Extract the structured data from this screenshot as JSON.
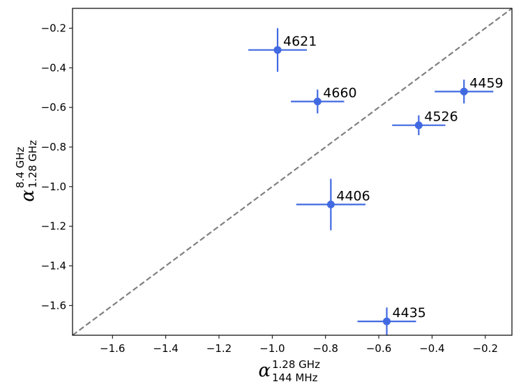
{
  "chart_data": {
    "type": "scatter",
    "title": "",
    "xlabel": {
      "symbol": "α",
      "sup": "1.28 GHz",
      "sub": "144 MHz"
    },
    "ylabel": {
      "symbol": "α",
      "sup": "8.4 GHz",
      "sub": "1.28 GHz"
    },
    "xlim": [
      -1.75,
      -0.1
    ],
    "ylim": [
      -1.75,
      -0.1
    ],
    "xticks": [
      -1.6,
      -1.4,
      -1.2,
      -1.0,
      -0.8,
      -0.6,
      -0.4,
      -0.2
    ],
    "yticks": [
      -1.6,
      -1.4,
      -1.2,
      -1.0,
      -0.8,
      -0.6,
      -0.4,
      -0.2
    ],
    "xtick_labels": [
      "−1.6",
      "−1.4",
      "−1.2",
      "−1.0",
      "−0.8",
      "−0.6",
      "−0.4",
      "−0.2"
    ],
    "ytick_labels": [
      "−1.6",
      "−1.4",
      "−1.2",
      "−1.0",
      "−0.8",
      "−0.6",
      "−0.4",
      "−0.2"
    ],
    "grid": false,
    "reference_line": {
      "style": "dashed",
      "color": "#808080",
      "relation": "y = x"
    },
    "marker_color": "#4169e1",
    "points": [
      {
        "label": "4621",
        "x": -0.98,
        "y": -0.31,
        "xerr": 0.11,
        "yerr": 0.11
      },
      {
        "label": "4660",
        "x": -0.83,
        "y": -0.57,
        "xerr": 0.1,
        "yerr": 0.06
      },
      {
        "label": "4459",
        "x": -0.28,
        "y": -0.52,
        "xerr": 0.11,
        "yerr": 0.06
      },
      {
        "label": "4526",
        "x": -0.45,
        "y": -0.69,
        "xerr": 0.1,
        "yerr": 0.05
      },
      {
        "label": "4406",
        "x": -0.78,
        "y": -1.09,
        "xerr": 0.13,
        "yerr": 0.13
      },
      {
        "label": "4435",
        "x": -0.57,
        "y": -1.68,
        "xerr": 0.11,
        "yerr": 0.07
      }
    ]
  }
}
